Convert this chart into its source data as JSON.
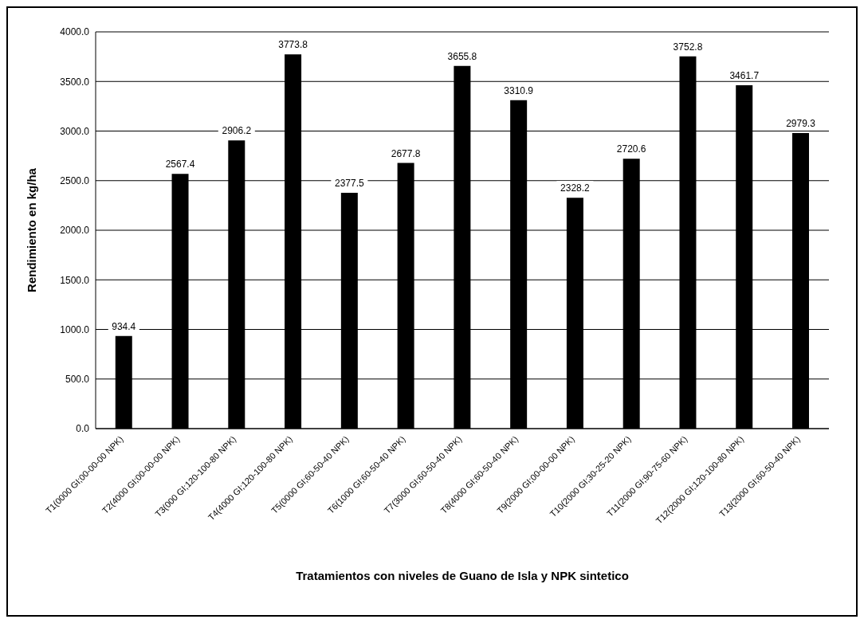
{
  "chart_data": {
    "type": "bar",
    "xlabel": "Tratamientos con niveles  de Guano de Isla y NPK sintetico",
    "ylabel": "Rendimiento en kg/ha",
    "categories": [
      "T1(0000 GI;00-00-00 NPK)",
      "T2(4000 GI;00-00-00 NPK)",
      "T3(000 GI;120-100-80 NPK)",
      "T4(4000 GI;120-100-80 NPK)",
      "T5(0000 GI;60-50-40 NPK)",
      "T6(1000 GI;60-50-40 NPK)",
      "T7(3000 GI;60-50-40 NPK)",
      "T8(4000 GI;60-50-40 NPK)",
      "T9(2000 GI;00-00-00 NPK)",
      "T10(2000 GI;30-25-20 NPK)",
      "T11(2000 GI;90-75-60 NPK)",
      "T12(2000 GI;120-100-80 NPK)",
      "T13(2000 GI;60-50-40 NPK)"
    ],
    "values": [
      934.4,
      2567.4,
      2906.2,
      3773.8,
      2377.5,
      2677.8,
      3655.8,
      3310.9,
      2328.2,
      2720.6,
      3752.8,
      3461.7,
      2979.3
    ],
    "color": "#000000",
    "data_labels": true,
    "ylim": [
      0,
      4000
    ],
    "yticks": [
      {
        "value": 0,
        "label": "0.0"
      },
      {
        "value": 500,
        "label": "500.0"
      },
      {
        "value": 1000,
        "label": "1000.0"
      },
      {
        "value": 1500,
        "label": "1500.0"
      },
      {
        "value": 2000,
        "label": "2000.0"
      },
      {
        "value": 2500,
        "label": "2500.0"
      },
      {
        "value": 3000,
        "label": "3000.0"
      },
      {
        "value": 3500,
        "label": "3500.0"
      },
      {
        "value": 4000,
        "label": "4000.0"
      }
    ],
    "grid": "y",
    "legend": false
  }
}
